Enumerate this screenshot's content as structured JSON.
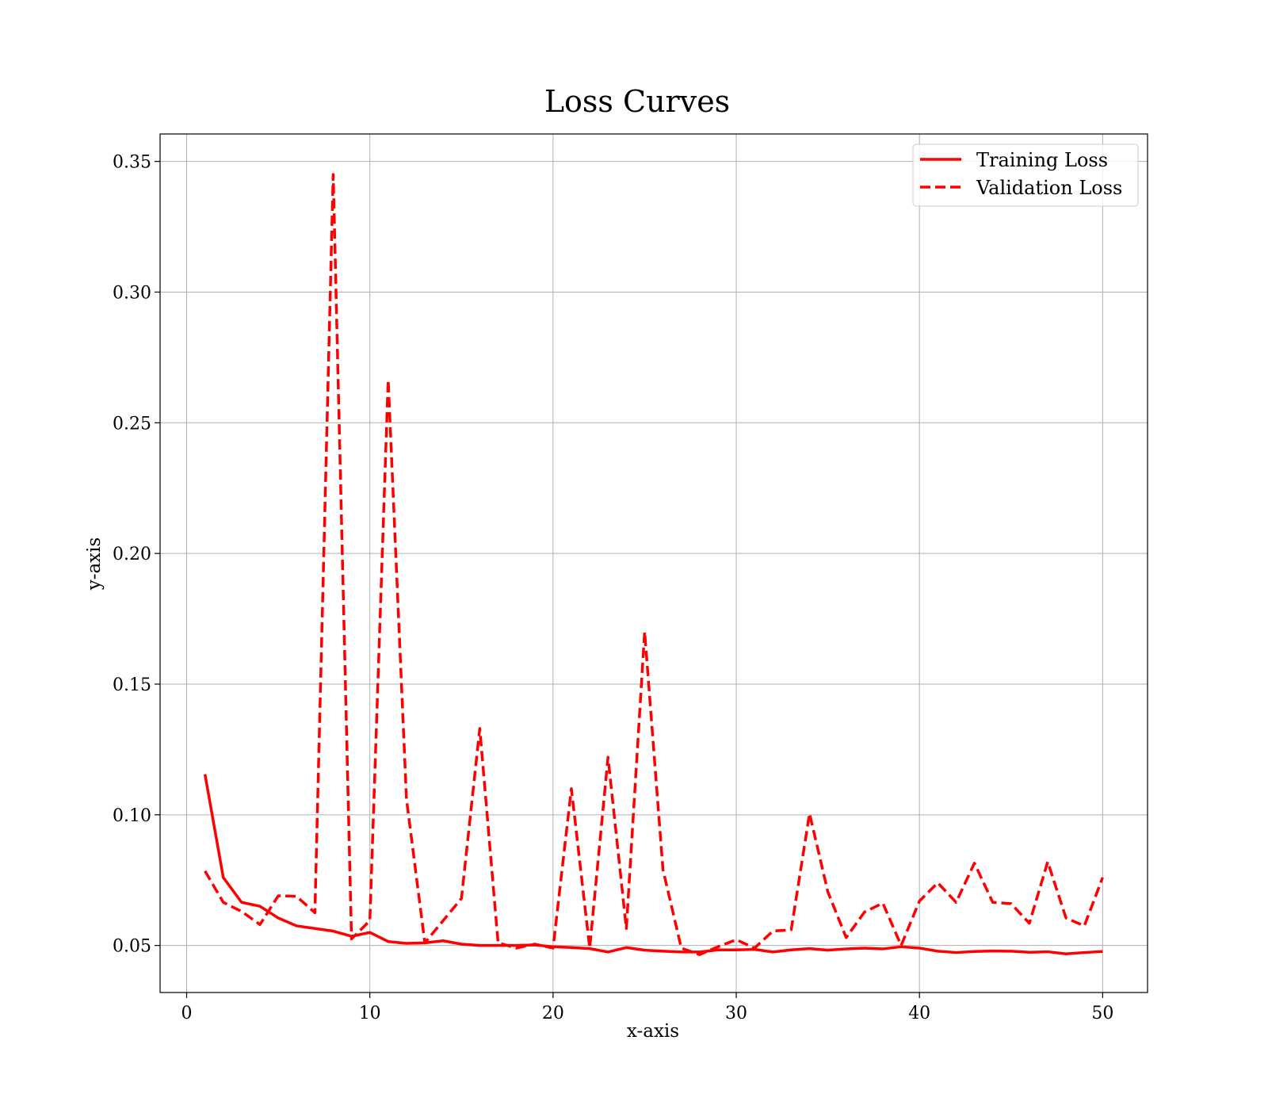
{
  "chart_data": {
    "type": "line",
    "title": "Loss Curves",
    "xlabel": "x-axis",
    "ylabel": "y-axis",
    "xlim": [
      -1.45,
      52.45
    ],
    "ylim": [
      0.032,
      0.3605
    ],
    "xticks": [
      0,
      10,
      20,
      30,
      40,
      50
    ],
    "yticks": [
      0.05,
      0.1,
      0.15,
      0.2,
      0.25,
      0.3,
      0.35
    ],
    "ytick_labels": [
      "0.05",
      "0.10",
      "0.15",
      "0.20",
      "0.25",
      "0.30",
      "0.35"
    ],
    "grid": true,
    "legend_position": "top-right",
    "colors": {
      "line": "#ff0000",
      "grid": "#b0b0b0",
      "frame": "#000000"
    },
    "x": [
      1,
      2,
      3,
      4,
      5,
      6,
      7,
      8,
      9,
      10,
      11,
      12,
      13,
      14,
      15,
      16,
      17,
      18,
      19,
      20,
      21,
      22,
      23,
      24,
      25,
      26,
      27,
      28,
      29,
      30,
      31,
      32,
      33,
      34,
      35,
      36,
      37,
      38,
      39,
      40,
      41,
      42,
      43,
      44,
      45,
      46,
      47,
      48,
      49,
      50
    ],
    "series": [
      {
        "name": "Training Loss",
        "style": "solid",
        "values": [
          0.1155,
          0.076,
          0.0665,
          0.065,
          0.0605,
          0.0575,
          0.0565,
          0.0555,
          0.0535,
          0.055,
          0.0515,
          0.0508,
          0.051,
          0.0518,
          0.0505,
          0.05,
          0.05,
          0.05,
          0.0502,
          0.0495,
          0.0492,
          0.0488,
          0.0475,
          0.0492,
          0.0482,
          0.0478,
          0.0475,
          0.0475,
          0.0483,
          0.0483,
          0.0485,
          0.0475,
          0.0483,
          0.0488,
          0.0482,
          0.0487,
          0.049,
          0.0487,
          0.0495,
          0.049,
          0.0478,
          0.0473,
          0.0477,
          0.0479,
          0.0478,
          0.0474,
          0.0476,
          0.0468,
          0.0473,
          0.0477
        ]
      },
      {
        "name": "Validation Loss",
        "style": "dashed",
        "values": [
          0.0785,
          0.0665,
          0.063,
          0.058,
          0.069,
          0.0688,
          0.0625,
          0.345,
          0.0525,
          0.0595,
          0.2665,
          0.106,
          0.051,
          0.0595,
          0.068,
          0.133,
          0.051,
          0.049,
          0.0505,
          0.049,
          0.11,
          0.049,
          0.122,
          0.0565,
          0.17,
          0.079,
          0.049,
          0.0465,
          0.0495,
          0.0522,
          0.049,
          0.0555,
          0.056,
          0.1005,
          0.0705,
          0.053,
          0.0628,
          0.0662,
          0.05,
          0.067,
          0.074,
          0.0665,
          0.0815,
          0.0665,
          0.066,
          0.0585,
          0.082,
          0.0605,
          0.0575,
          0.076
        ]
      }
    ]
  }
}
